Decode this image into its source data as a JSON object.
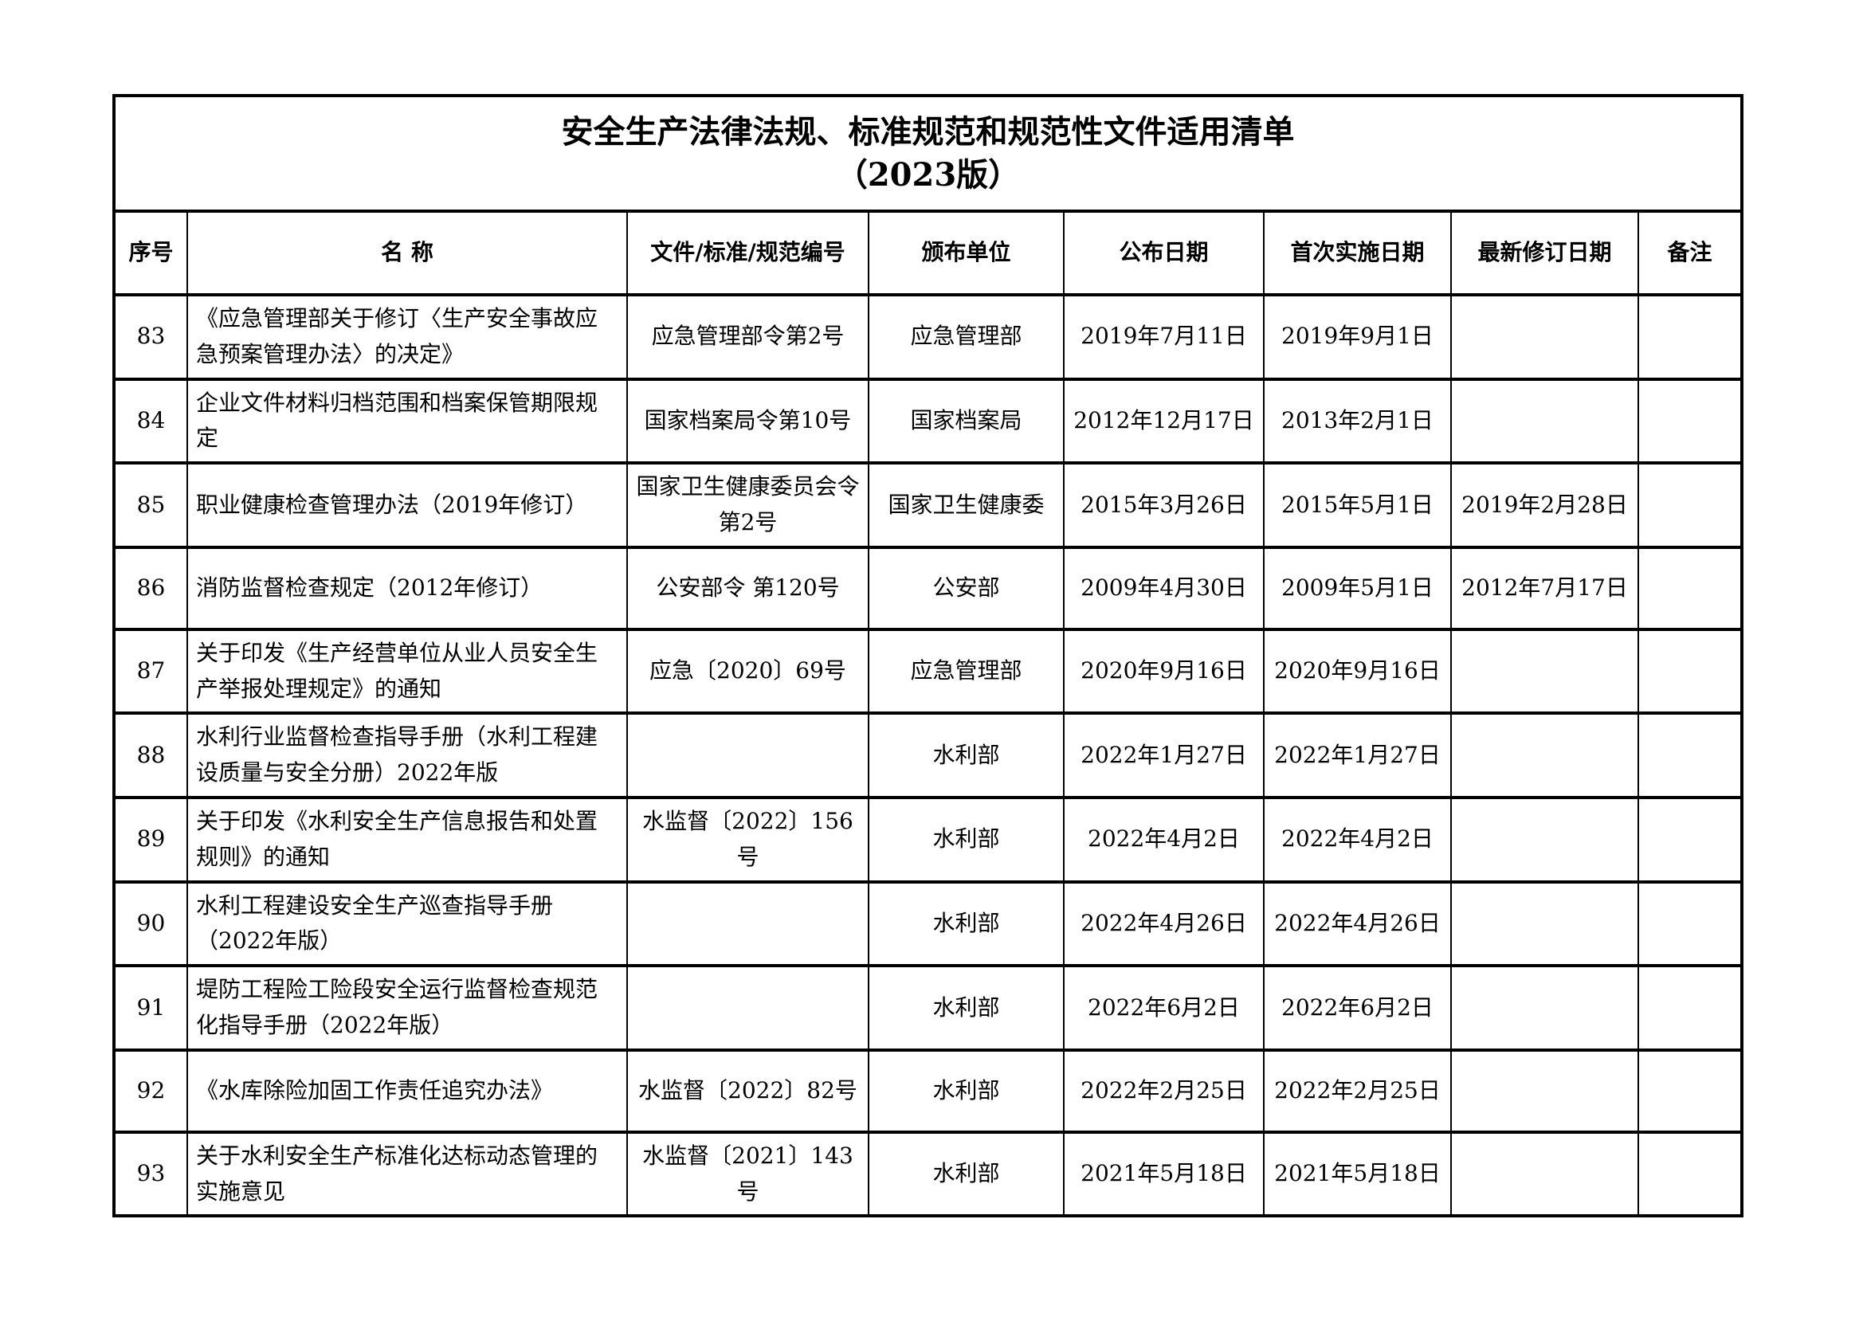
{
  "title": {
    "line1": "安全生产法律法规、标准规范和规范性文件适用清单",
    "line2": "（2023版）"
  },
  "colors": {
    "border": "#000000",
    "background": "#ffffff",
    "text": "#000000"
  },
  "table": {
    "headers": [
      "序号",
      "名 称",
      "文件/标准/规范编号",
      "颁布单位",
      "公布日期",
      "首次实施日期",
      "最新修订日期",
      "备注"
    ],
    "rows": [
      {
        "no": "83",
        "name": "《应急管理部关于修订〈生产安全事故应急预案管理办法〉的决定》",
        "doc_no": "应急管理部令第2号",
        "issuer": "应急管理部",
        "publish_date": "2019年7月11日",
        "first_impl_date": "2019年9月1日",
        "latest_revision_date": "",
        "remark": ""
      },
      {
        "no": "84",
        "name": "企业文件材料归档范围和档案保管期限规定",
        "doc_no": "国家档案局令第10号",
        "issuer": "国家档案局",
        "publish_date": "2012年12月17日",
        "first_impl_date": "2013年2月1日",
        "latest_revision_date": "",
        "remark": ""
      },
      {
        "no": "85",
        "name": "职业健康检查管理办法（2019年修订）",
        "doc_no": "国家卫生健康委员会令第2号",
        "issuer": "国家卫生健康委",
        "publish_date": "2015年3月26日",
        "first_impl_date": "2015年5月1日",
        "latest_revision_date": "2019年2月28日",
        "remark": ""
      },
      {
        "no": "86",
        "name": "消防监督检查规定（2012年修订）",
        "doc_no": "公安部令 第120号",
        "issuer": "公安部",
        "publish_date": "2009年4月30日",
        "first_impl_date": "2009年5月1日",
        "latest_revision_date": "2012年7月17日",
        "remark": ""
      },
      {
        "no": "87",
        "name": "关于印发《生产经营单位从业人员安全生产举报处理规定》的通知",
        "doc_no": "应急〔2020〕69号",
        "issuer": "应急管理部",
        "publish_date": "2020年9月16日",
        "first_impl_date": "2020年9月16日",
        "latest_revision_date": "",
        "remark": ""
      },
      {
        "no": "88",
        "name": "水利行业监督检查指导手册（水利工程建设质量与安全分册）2022年版",
        "doc_no": "",
        "issuer": "水利部",
        "publish_date": "2022年1月27日",
        "first_impl_date": "2022年1月27日",
        "latest_revision_date": "",
        "remark": ""
      },
      {
        "no": "89",
        "name": "关于印发《水利安全生产信息报告和处置规则》的通知",
        "doc_no": "水监督〔2022〕156号",
        "issuer": "水利部",
        "publish_date": "2022年4月2日",
        "first_impl_date": "2022年4月2日",
        "latest_revision_date": "",
        "remark": ""
      },
      {
        "no": "90",
        "name": "水利工程建设安全生产巡查指导手册（2022年版）",
        "doc_no": "",
        "issuer": "水利部",
        "publish_date": "2022年4月26日",
        "first_impl_date": "2022年4月26日",
        "latest_revision_date": "",
        "remark": ""
      },
      {
        "no": "91",
        "name": "堤防工程险工险段安全运行监督检查规范化指导手册（2022年版）",
        "doc_no": "",
        "issuer": "水利部",
        "publish_date": "2022年6月2日",
        "first_impl_date": "2022年6月2日",
        "latest_revision_date": "",
        "remark": ""
      },
      {
        "no": "92",
        "name": "《水库除险加固工作责任追究办法》",
        "doc_no": "水监督〔2022〕82号",
        "issuer": "水利部",
        "publish_date": "2022年2月25日",
        "first_impl_date": "2022年2月25日",
        "latest_revision_date": "",
        "remark": ""
      },
      {
        "no": "93",
        "name": "关于水利安全生产标准化达标动态管理的实施意见",
        "doc_no": "水监督〔2021〕143号",
        "issuer": "水利部",
        "publish_date": "2021年5月18日",
        "first_impl_date": "2021年5月18日",
        "latest_revision_date": "",
        "remark": ""
      }
    ]
  }
}
